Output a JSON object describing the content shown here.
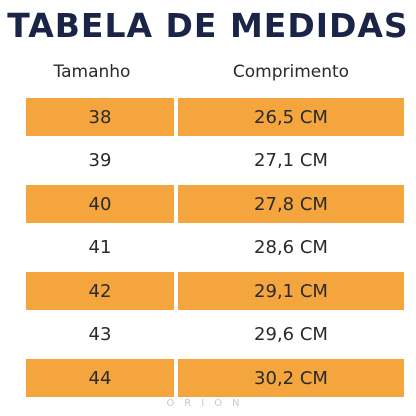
{
  "title": "TABELA DE MEDIDAS",
  "headers": {
    "size": "Tamanho",
    "length": "Comprimento"
  },
  "rows": [
    {
      "size": "38",
      "length": "26,5 CM",
      "shaded": true
    },
    {
      "size": "39",
      "length": "27,1 CM",
      "shaded": false
    },
    {
      "size": "40",
      "length": "27,8 CM",
      "shaded": true
    },
    {
      "size": "41",
      "length": "28,6 CM",
      "shaded": false
    },
    {
      "size": "42",
      "length": "29,1 CM",
      "shaded": true
    },
    {
      "size": "43",
      "length": "29,6 CM",
      "shaded": false
    },
    {
      "size": "44",
      "length": "30,2 CM",
      "shaded": true
    }
  ],
  "watermark": "ORION",
  "colors": {
    "title": "#1a2447",
    "row_fill": "#f4a53d",
    "text": "#2a2a2a",
    "watermark": "#c9c9c9"
  }
}
